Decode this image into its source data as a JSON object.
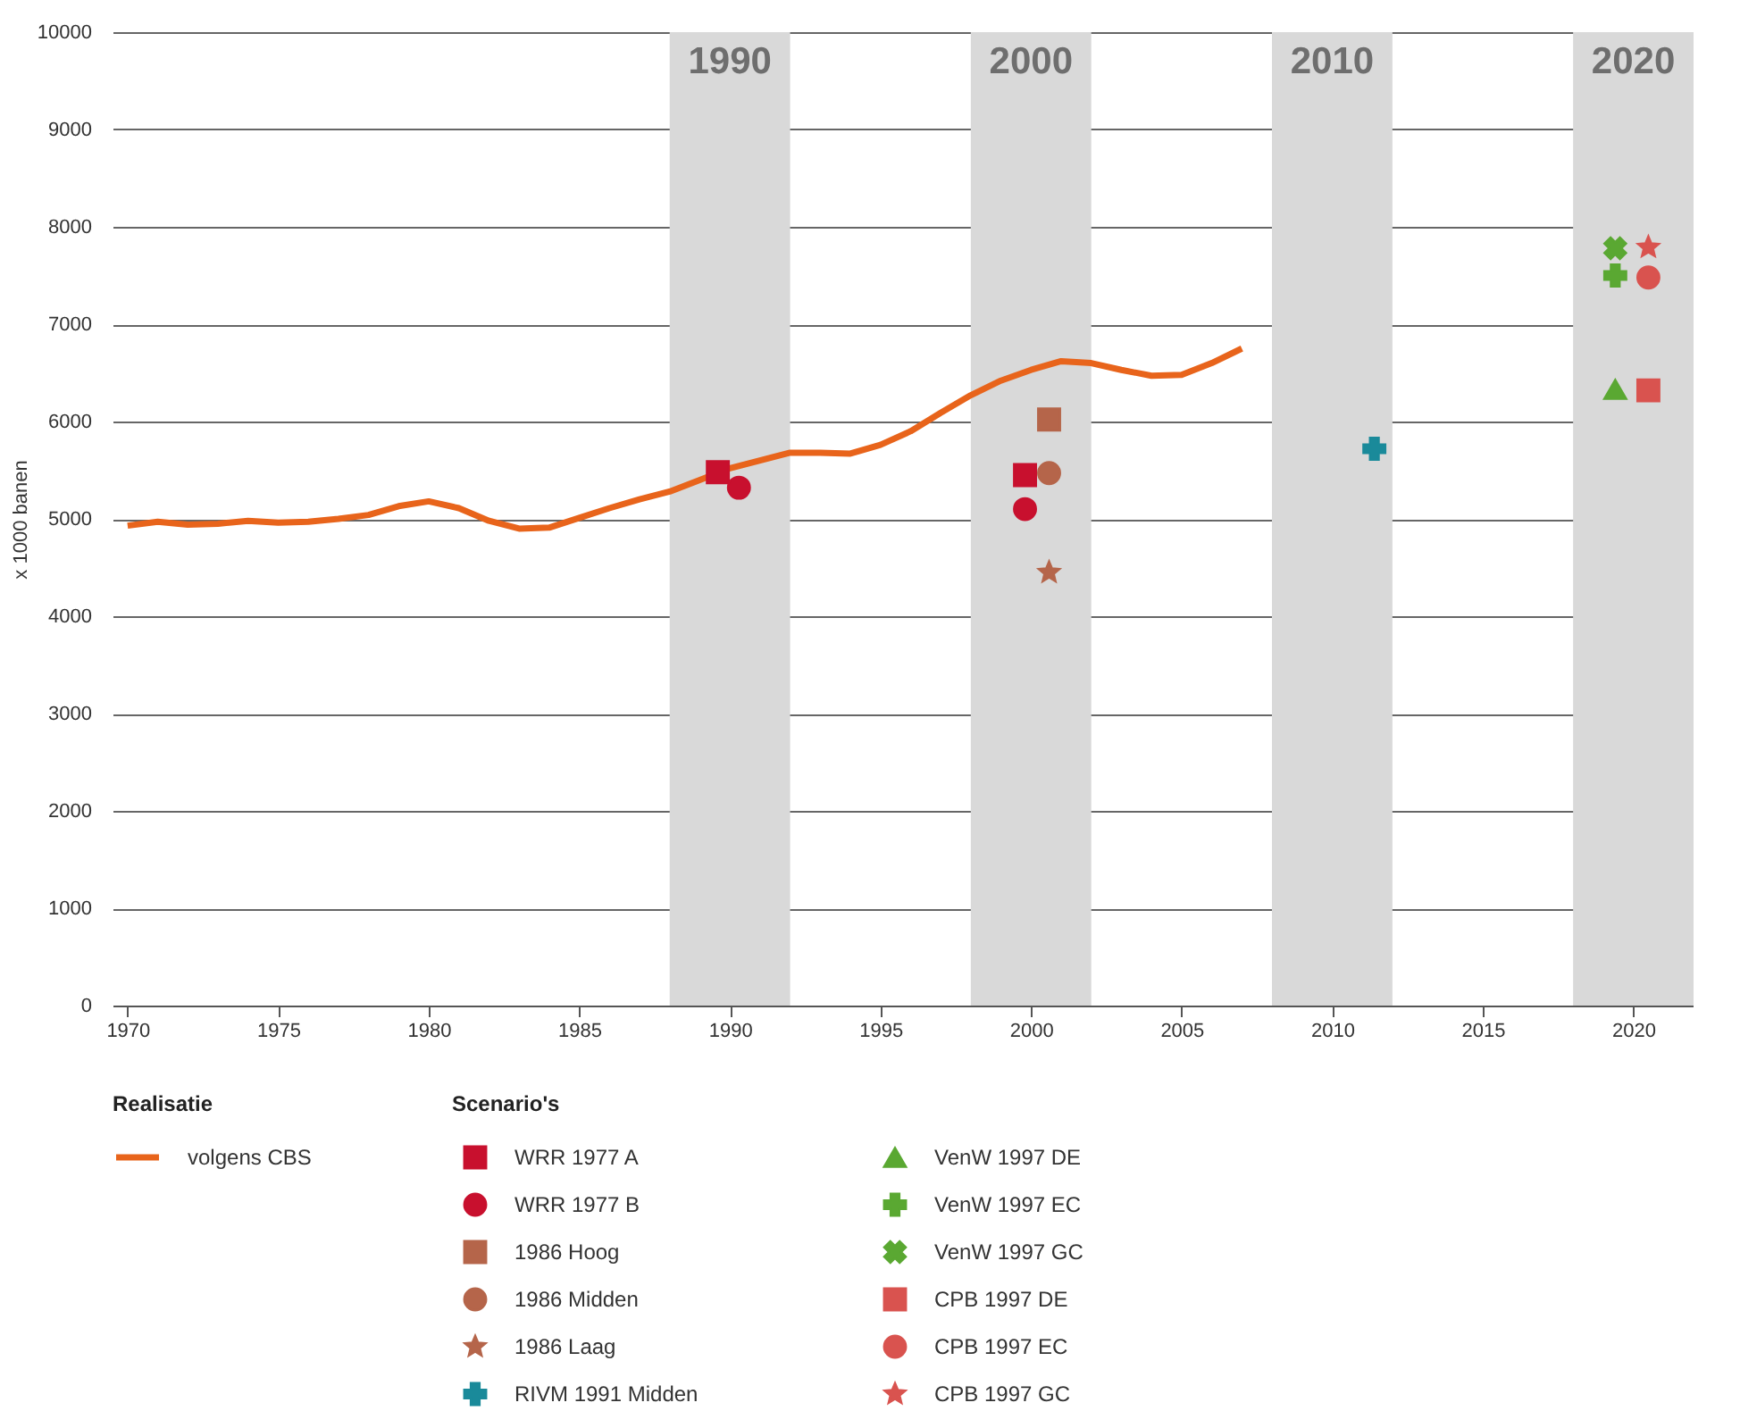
{
  "chart_data": {
    "type": "scatter",
    "ylabel": "x 1000 banen",
    "legend_title": "Scenario's",
    "annotations": [
      "Realisatie"
    ],
    "xlim": [
      1969.5,
      2022
    ],
    "xticks": [
      1970,
      1975,
      1980,
      1985,
      1990,
      1995,
      2000,
      2005,
      2010,
      2015,
      2020
    ],
    "ylim": [
      0,
      10000
    ],
    "yticks": [
      0,
      1000,
      2000,
      3000,
      4000,
      5000,
      6000,
      7000,
      8000,
      9000,
      10000
    ],
    "grid": "y",
    "legend": "bottom",
    "bands": [
      {
        "axis": "x",
        "from": 1988,
        "to": 1992,
        "label": "1990",
        "color": "#d9d9d9"
      },
      {
        "axis": "x",
        "from": 1998,
        "to": 2002,
        "label": "2000",
        "color": "#d9d9d9"
      },
      {
        "axis": "x",
        "from": 2008,
        "to": 2012,
        "label": "2010",
        "color": "#d9d9d9"
      },
      {
        "axis": "x",
        "from": 2018,
        "to": 2022,
        "label": "2020",
        "color": "#d9d9d9"
      }
    ],
    "series": [
      {
        "name": "volgens CBS",
        "type": "line",
        "color": "#e8641b",
        "marker": "none",
        "line_style": "solid",
        "x": [
          1970,
          1971,
          1972,
          1973,
          1974,
          1975,
          1976,
          1977,
          1978,
          1979,
          1980,
          1981,
          1982,
          1983,
          1984,
          1985,
          1986,
          1987,
          1988,
          1989,
          1990,
          1991,
          1992,
          1993,
          1994,
          1995,
          1996,
          1997,
          1998,
          1999,
          2000,
          2001,
          2002,
          2003,
          2004,
          2005,
          2006,
          2007
        ],
        "values": [
          4930,
          4970,
          4940,
          4950,
          4980,
          4960,
          4970,
          5000,
          5040,
          5130,
          5180,
          5110,
          4980,
          4900,
          4910,
          5010,
          5110,
          5200,
          5280,
          5400,
          5520,
          5600,
          5680,
          5680,
          5670,
          5760,
          5900,
          6090,
          6270,
          6420,
          6530,
          6620,
          6600,
          6530,
          6470,
          6480,
          6600,
          6750
        ]
      },
      {
        "name": "WRR 1977 A",
        "color": "#c8102e",
        "marker": "square",
        "x": [
          1989.6,
          1999.8
        ],
        "values": [
          5480,
          5450
        ]
      },
      {
        "name": "WRR 1977 B",
        "color": "#c8102e",
        "marker": "circle",
        "x": [
          1990.3,
          1999.8
        ],
        "values": [
          5320,
          5100
        ]
      },
      {
        "name": "1986 Hoog",
        "color": "#b5654a",
        "marker": "square",
        "x": [
          2000.6
        ],
        "values": [
          6020
        ]
      },
      {
        "name": "1986 Midden",
        "color": "#b5654a",
        "marker": "circle",
        "x": [
          2000.6
        ],
        "values": [
          5470
        ]
      },
      {
        "name": "1986 Laag",
        "color": "#b5654a",
        "marker": "star",
        "x": [
          2000.6
        ],
        "values": [
          4450
        ]
      },
      {
        "name": "RIVM 1991 Midden",
        "color": "#1a8a9a",
        "marker": "cross",
        "x": [
          2011.4
        ],
        "values": [
          5720
        ]
      },
      {
        "name": "VenW 1997 DE",
        "color": "#5aa832",
        "marker": "triangle",
        "x": [
          2019.4
        ],
        "values": [
          6330
        ]
      },
      {
        "name": "VenW 1997 EC",
        "color": "#5aa832",
        "marker": "cross",
        "x": [
          2019.4
        ],
        "values": [
          7500
        ]
      },
      {
        "name": "VenW 1997 GC",
        "color": "#5aa832",
        "marker": "x",
        "x": [
          2019.4
        ],
        "values": [
          7780
        ]
      },
      {
        "name": "CPB 1997 DE",
        "color": "#d9534f",
        "marker": "square",
        "x": [
          2020.5
        ],
        "values": [
          6320
        ]
      },
      {
        "name": "CPB 1997 EC",
        "color": "#d9534f",
        "marker": "circle",
        "x": [
          2020.5
        ],
        "values": [
          7480
        ]
      },
      {
        "name": "CPB 1997 GC",
        "color": "#d9534f",
        "marker": "star",
        "x": [
          2020.5
        ],
        "values": [
          7790
        ]
      }
    ]
  }
}
